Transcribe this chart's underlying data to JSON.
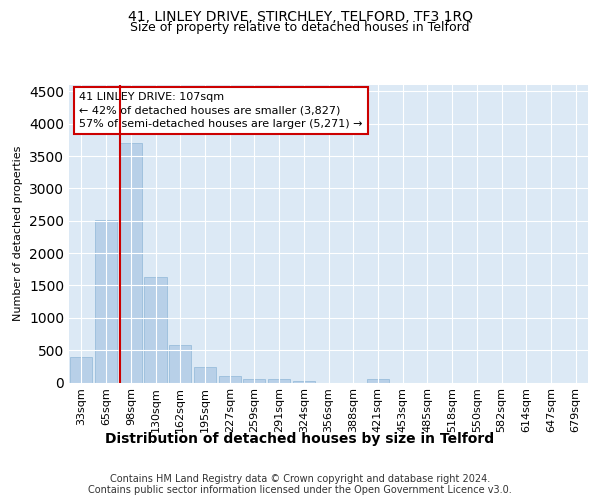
{
  "title": "41, LINLEY DRIVE, STIRCHLEY, TELFORD, TF3 1RQ",
  "subtitle": "Size of property relative to detached houses in Telford",
  "xlabel": "Distribution of detached houses by size in Telford",
  "ylabel": "Number of detached properties",
  "categories": [
    "33sqm",
    "65sqm",
    "98sqm",
    "130sqm",
    "162sqm",
    "195sqm",
    "227sqm",
    "259sqm",
    "291sqm",
    "324sqm",
    "356sqm",
    "388sqm",
    "421sqm",
    "453sqm",
    "485sqm",
    "518sqm",
    "550sqm",
    "582sqm",
    "614sqm",
    "647sqm",
    "679sqm"
  ],
  "values": [
    390,
    2510,
    3700,
    1630,
    580,
    240,
    105,
    60,
    50,
    30,
    0,
    0,
    50,
    0,
    0,
    0,
    0,
    0,
    0,
    0,
    0
  ],
  "bar_color": "#b8d0e8",
  "bar_edge_color": "#90b8d8",
  "vline_color": "#cc0000",
  "annotation_title": "41 LINLEY DRIVE: 107sqm",
  "annotation_line1": "← 42% of detached houses are smaller (3,827)",
  "annotation_line2": "57% of semi-detached houses are larger (5,271) →",
  "annotation_box_color": "#cc0000",
  "ylim": [
    0,
    4600
  ],
  "yticks": [
    0,
    500,
    1000,
    1500,
    2000,
    2500,
    3000,
    3500,
    4000,
    4500
  ],
  "plot_bg_color": "#dce9f5",
  "footer_line1": "Contains HM Land Registry data © Crown copyright and database right 2024.",
  "footer_line2": "Contains public sector information licensed under the Open Government Licence v3.0.",
  "title_fontsize": 10,
  "subtitle_fontsize": 9,
  "xlabel_fontsize": 10,
  "ylabel_fontsize": 8,
  "tick_fontsize": 8,
  "ann_fontsize": 8,
  "footer_fontsize": 7
}
